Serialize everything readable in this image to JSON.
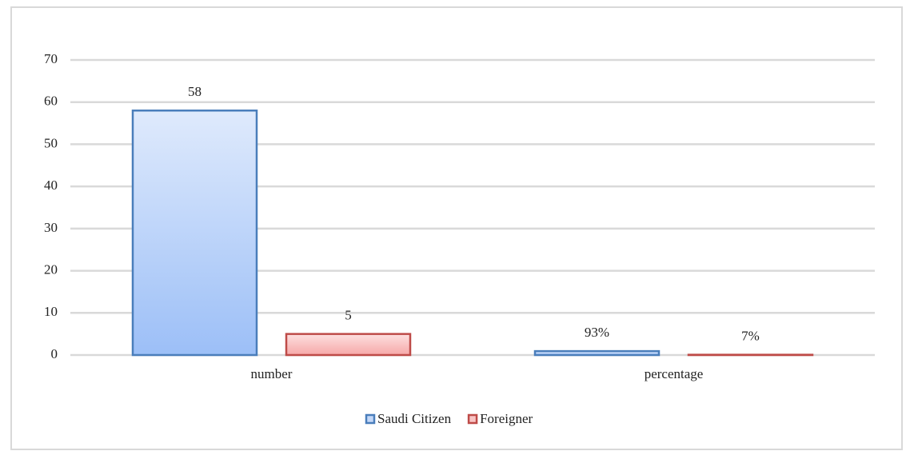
{
  "chart_data": {
    "type": "bar",
    "categories": [
      "number",
      "percentage"
    ],
    "series": [
      {
        "name": "Saudi Citizen",
        "color": "#4a7ebb",
        "values": [
          58,
          0.93
        ],
        "value_labels": [
          "58",
          "93%"
        ]
      },
      {
        "name": "Foreigner",
        "color": "#be4b48",
        "values": [
          5,
          0.07
        ],
        "value_labels": [
          "5",
          "7%"
        ]
      }
    ],
    "ylim": [
      0,
      70
    ],
    "yticks": [
      0,
      10,
      20,
      30,
      40,
      50,
      60,
      70
    ],
    "grid": true,
    "legend": "bottom"
  }
}
